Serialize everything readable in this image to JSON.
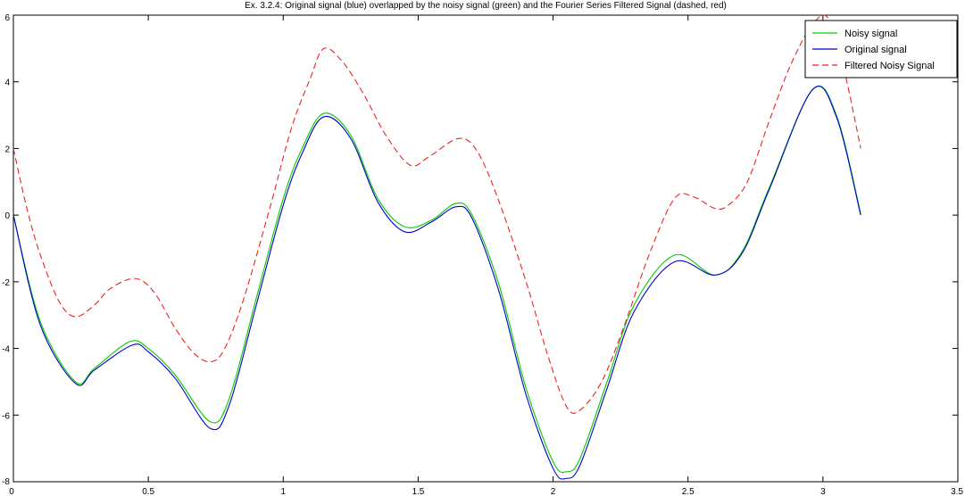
{
  "chart_data": {
    "type": "line",
    "title": "Ex. 3.2.4: Original signal (blue) overlapped by the noisy signal (green) and the Fourier Series Filtered Signal (dashed, red)",
    "xlabel": "",
    "ylabel": "",
    "xlim": [
      0,
      3.5
    ],
    "ylim": [
      -8,
      6
    ],
    "x_ticks": [
      0,
      0.5,
      1,
      1.5,
      2,
      2.5,
      3,
      3.5
    ],
    "x_tick_labels": [
      "0",
      "0.5",
      "1",
      "1.5",
      "2",
      "2.5",
      "3",
      "3.5"
    ],
    "y_ticks": [
      -8,
      -6,
      -4,
      -2,
      0,
      2,
      4,
      6
    ],
    "y_tick_labels": [
      "-8",
      "-6",
      "-4",
      "-2",
      "0",
      "2",
      "4",
      "6"
    ],
    "grid": false,
    "legend_position": "top-right",
    "series": [
      {
        "name": "Noisy signal",
        "color": "#00cc00",
        "style": "solid",
        "x": [
          0,
          0.1,
          0.23,
          0.3,
          0.43,
          0.5,
          0.6,
          0.73,
          0.8,
          0.9,
          1.0,
          1.07,
          1.15,
          1.25,
          1.35,
          1.45,
          1.55,
          1.64,
          1.7,
          1.8,
          1.9,
          2.0,
          2.05,
          2.1,
          2.2,
          2.3,
          2.45,
          2.6,
          2.7,
          2.8,
          2.96,
          3.05,
          3.14
        ],
        "y": [
          0,
          -3.2,
          -5.0,
          -4.6,
          -3.8,
          -4.0,
          -4.8,
          -6.2,
          -5.5,
          -2.5,
          0.5,
          2.0,
          3.05,
          2.4,
          0.5,
          -0.35,
          -0.15,
          0.35,
          0.0,
          -2.1,
          -5.2,
          -7.4,
          -7.7,
          -7.3,
          -5.0,
          -2.7,
          -1.2,
          -1.8,
          -1.1,
          0.8,
          3.75,
          3.0,
          0.05
        ]
      },
      {
        "name": "Original signal",
        "color": "#0000cc",
        "style": "solid",
        "x": [
          0,
          0.1,
          0.23,
          0.3,
          0.44,
          0.5,
          0.6,
          0.73,
          0.8,
          0.9,
          1.0,
          1.07,
          1.15,
          1.25,
          1.35,
          1.45,
          1.55,
          1.64,
          1.7,
          1.8,
          1.9,
          2.0,
          2.05,
          2.1,
          2.2,
          2.3,
          2.45,
          2.6,
          2.7,
          2.8,
          2.96,
          3.05,
          3.14
        ],
        "y": [
          0,
          -3.3,
          -5.05,
          -4.65,
          -3.9,
          -4.1,
          -4.9,
          -6.4,
          -5.7,
          -2.7,
          0.3,
          1.85,
          2.95,
          2.3,
          0.4,
          -0.5,
          -0.2,
          0.25,
          -0.1,
          -2.3,
          -5.4,
          -7.6,
          -7.9,
          -7.5,
          -5.2,
          -2.9,
          -1.4,
          -1.8,
          -1.15,
          0.75,
          3.75,
          2.95,
          0
        ]
      },
      {
        "name": "Filtered Noisy Signal",
        "color": "#ee2222",
        "style": "dashed",
        "x": [
          0,
          0.05,
          0.1,
          0.17,
          0.23,
          0.3,
          0.36,
          0.45,
          0.52,
          0.6,
          0.67,
          0.73,
          0.78,
          0.85,
          0.95,
          1.03,
          1.1,
          1.15,
          1.22,
          1.3,
          1.38,
          1.47,
          1.54,
          1.65,
          1.72,
          1.8,
          1.9,
          1.98,
          2.05,
          2.1,
          2.18,
          2.26,
          2.36,
          2.45,
          2.52,
          2.6,
          2.65,
          2.72,
          2.8,
          2.88,
          2.96,
          3.02,
          3.08,
          3.14
        ],
        "y": [
          2.0,
          0.2,
          -1.2,
          -2.6,
          -3.05,
          -2.7,
          -2.2,
          -1.9,
          -2.3,
          -3.4,
          -4.15,
          -4.4,
          -4.05,
          -2.6,
          0.2,
          2.6,
          4.1,
          5.0,
          4.6,
          3.6,
          2.4,
          1.5,
          1.75,
          2.3,
          1.9,
          0.4,
          -2.0,
          -4.2,
          -5.75,
          -5.85,
          -5.0,
          -3.4,
          -1.1,
          0.5,
          0.55,
          0.2,
          0.3,
          1.0,
          2.8,
          4.5,
          5.7,
          5.9,
          4.3,
          2.0
        ]
      }
    ]
  }
}
